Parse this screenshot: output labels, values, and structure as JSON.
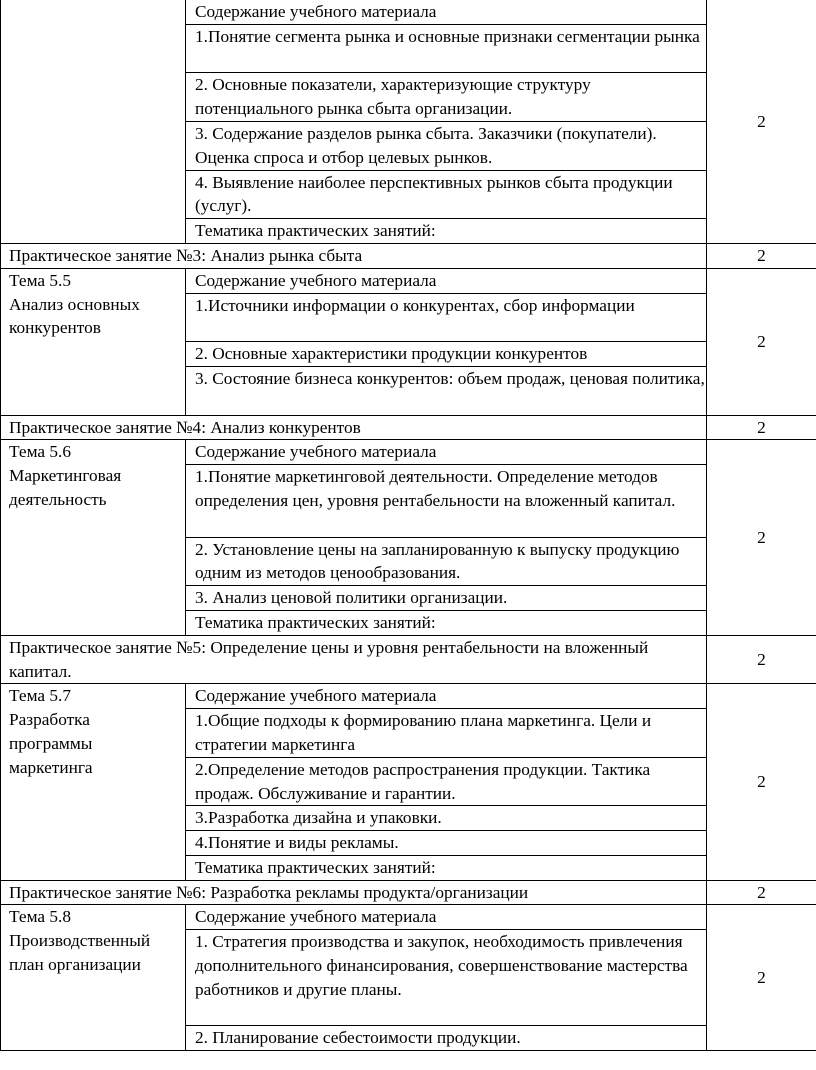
{
  "blocks": [
    {
      "topic": [
        "",
        ""
      ],
      "content_heading": "Содержание учебного материала",
      "items": [
        "1.Понятие сегмента рынка и основные признаки сегментации рынка",
        "2. Основные показатели, характеризующие структуру потенциального рынка сбыта организации.",
        "3. Содержание разделов рынка сбыта. Заказчики (покупатели). Оценка спроса и отбор целевых рынков.",
        "4. Выявление наиболее перспективных рынков сбыта продукции (услуг)."
      ],
      "practice_heading": "Тематика практических занятий:",
      "hours": "2",
      "practical": {
        "label": "Практическое занятие №3: Анализ рынка сбыта",
        "hours": "2"
      }
    },
    {
      "topic": [
        "Тема 5.5",
        "Анализ основных конкурентов"
      ],
      "content_heading": "Содержание учебного материала",
      "items": [
        "1.Источники информации о конкурентах, сбор информации",
        "2. Основные характеристики продукции конкурентов",
        "3. Состояние бизнеса конкурентов: объем продаж, ценовая политика,"
      ],
      "hours": "2",
      "practical": {
        "label": "Практическое занятие №4: Анализ конкурентов",
        "hours": "2"
      }
    },
    {
      "topic": [
        "Тема 5.6",
        "Маркетинговая деятельность"
      ],
      "content_heading": "Содержание учебного материала",
      "items": [
        "1.Понятие маркетинговой деятельности. Определение методов определения цен, уровня рентабельности на вложенный капитал.",
        "2. Установление цены на запланированную к выпуску продукцию одним из методов ценообразования.",
        "3. Анализ ценовой политики организации."
      ],
      "practice_heading": "Тематика практических занятий:",
      "hours": "2",
      "practical": {
        "label": "Практическое занятие №5: Определение цены и уровня рентабельности на вложенный капитал.",
        "hours": "2"
      }
    },
    {
      "topic": [
        "Тема 5.7",
        "Разработка программы маркетинга"
      ],
      "content_heading": "Содержание учебного материала",
      "items": [
        "1.Общие подходы к формированию плана маркетинга. Цели и стратегии маркетинга",
        "2.Определение методов распространения продукции. Тактика продаж. Обслуживание и гарантии.",
        "3.Разработка дизайна и упаковки.",
        "4.Понятие и виды рекламы."
      ],
      "practice_heading": "Тематика практических занятий:",
      "hours": "2",
      "practical": {
        "label": "Практическое занятие №6: Разработка рекламы продукта/организации",
        "hours": "2"
      }
    },
    {
      "topic": [
        "Тема 5.8",
        "Производственный план организации"
      ],
      "content_heading": "Содержание учебного материала",
      "items": [
        "1. Стратегия производства и закупок, необходимость привлечения дополнительного финансирования, совершенствование мастерства работников и другие планы.",
        "2. Планирование себестоимости продукции."
      ],
      "hours": "2"
    }
  ]
}
